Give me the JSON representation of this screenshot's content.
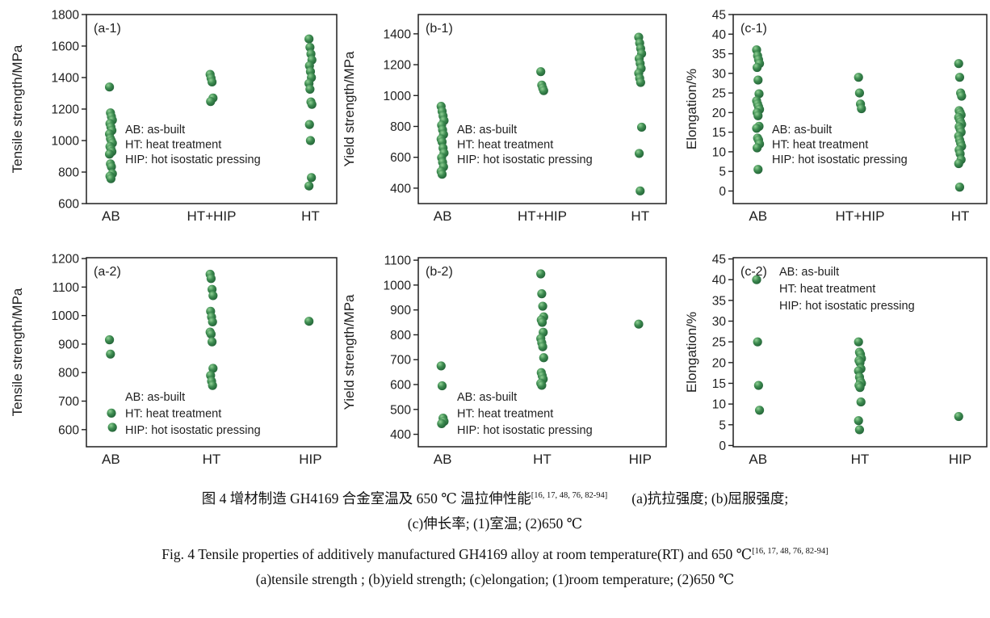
{
  "colors": {
    "point_highlight": "#90d094",
    "point_mid": "#3d8b50",
    "point_dark": "#1e5c33",
    "axis": "#1f1f1f",
    "text": "#1f1f1f"
  },
  "legend": {
    "lines": [
      "AB: as-built",
      "HT: heat treatment",
      "HIP: hot isostatic pressing"
    ]
  },
  "chart_data": [
    {
      "id": "a-1",
      "type": "scatter",
      "panel_label": "(a-1)",
      "ylabel": "Tensile strength/MPa",
      "ylim": [
        600,
        1800
      ],
      "yticks": [
        600,
        800,
        1000,
        1200,
        1400,
        1600,
        1800
      ],
      "axis_range": [
        600,
        1800
      ],
      "grid": false,
      "categories": [
        "AB",
        "HT+HIP",
        "HT"
      ],
      "legend_position": "middle-left",
      "series": [
        {
          "category": "AB",
          "values": [
            1340,
            1176,
            1152,
            1130,
            1108,
            1086,
            1064,
            1042,
            1012,
            998,
            984,
            962,
            946,
            930,
            914,
            852,
            834,
            790,
            774,
            758
          ]
        },
        {
          "category": "HT+HIP",
          "values": [
            1420,
            1396,
            1372,
            1270,
            1248
          ]
        },
        {
          "category": "HT",
          "values": [
            1645,
            1592,
            1550,
            1512,
            1475,
            1438,
            1400,
            1363,
            1326,
            1245,
            1230,
            1102,
            1000,
            765,
            712
          ]
        }
      ]
    },
    {
      "id": "b-1",
      "type": "scatter",
      "panel_label": "(b-1)",
      "ylabel": "Yield strength/MPa",
      "ylim": [
        400,
        1400
      ],
      "yticks": [
        400,
        600,
        800,
        1000,
        1200,
        1400
      ],
      "axis_range": [
        300,
        1525
      ],
      "grid": false,
      "categories": [
        "AB",
        "HT+HIP",
        "HT"
      ],
      "legend_position": "middle-left",
      "series": [
        {
          "category": "AB",
          "values": [
            930,
            898,
            868,
            838,
            808,
            778,
            748,
            718,
            700,
            660,
            628,
            598,
            568,
            538,
            508,
            490
          ]
        },
        {
          "category": "HT+HIP",
          "values": [
            1155,
            1068,
            1048,
            1032
          ]
        },
        {
          "category": "HT",
          "values": [
            1378,
            1340,
            1305,
            1272,
            1240,
            1208,
            1176,
            1145,
            1112,
            1085,
            795,
            625,
            382
          ]
        }
      ]
    },
    {
      "id": "c-1",
      "type": "scatter",
      "panel_label": "(c-1)",
      "ylabel": "Elongation/%",
      "ylim": [
        0,
        45
      ],
      "yticks": [
        0,
        5,
        10,
        15,
        20,
        25,
        30,
        35,
        40,
        45
      ],
      "axis_range": [
        -3.2,
        45
      ],
      "grid": false,
      "categories": [
        "AB",
        "HT+HIP",
        "HT"
      ],
      "legend_position": "middle-left",
      "series": [
        {
          "category": "AB",
          "values": [
            36,
            34.5,
            33.5,
            32.5,
            31.5,
            28.3,
            24.8,
            23,
            22.2,
            21.5,
            20.8,
            20,
            19.2,
            16.5,
            16,
            13.5,
            13,
            12,
            11,
            5.5
          ]
        },
        {
          "category": "HT+HIP",
          "values": [
            29,
            25,
            22.2,
            21
          ]
        },
        {
          "category": "HT",
          "values": [
            32.5,
            29,
            25,
            24.2,
            20.5,
            20,
            19.4,
            18.8,
            18.2,
            17.6,
            17,
            16.4,
            15.8,
            15,
            14,
            13,
            12.2,
            11.4,
            10.5,
            9.5,
            8,
            7,
            1
          ]
        }
      ]
    },
    {
      "id": "a-2",
      "type": "scatter",
      "panel_label": "(a-2)",
      "ylabel": "Tensile strength/MPa",
      "ylim": [
        600,
        1200
      ],
      "yticks": [
        600,
        700,
        800,
        900,
        1000,
        1100,
        1200
      ],
      "axis_range": [
        540,
        1203
      ],
      "grid": false,
      "categories": [
        "AB",
        "HT",
        "HIP"
      ],
      "legend_position": "lower-left",
      "series": [
        {
          "category": "AB",
          "values": [
            915,
            865,
            658,
            608
          ]
        },
        {
          "category": "HT",
          "values": [
            1145,
            1130,
            1092,
            1070,
            1015,
            995,
            978,
            942,
            935,
            908,
            815,
            790,
            770,
            755
          ]
        },
        {
          "category": "HIP",
          "values": [
            980
          ]
        }
      ]
    },
    {
      "id": "b-2",
      "type": "scatter",
      "panel_label": "(b-2)",
      "ylabel": "Yield strength/MPa",
      "ylim": [
        400,
        1100
      ],
      "yticks": [
        400,
        500,
        600,
        700,
        800,
        900,
        1000,
        1100
      ],
      "axis_range": [
        350,
        1110
      ],
      "grid": false,
      "categories": [
        "AB",
        "HT",
        "HIP"
      ],
      "legend_position": "lower-left",
      "series": [
        {
          "category": "AB",
          "values": [
            675,
            595,
            465,
            452,
            443
          ]
        },
        {
          "category": "HT",
          "values": [
            1045,
            965,
            915,
            872,
            860,
            850,
            810,
            785,
            768,
            752,
            708,
            648,
            635,
            622,
            605,
            597
          ]
        },
        {
          "category": "HIP",
          "values": [
            843
          ]
        }
      ]
    },
    {
      "id": "c-2",
      "type": "scatter",
      "panel_label": "(c-2)",
      "ylabel": "Elongation/%",
      "ylim": [
        0,
        45
      ],
      "yticks": [
        0,
        5,
        10,
        15,
        20,
        25,
        30,
        35,
        40,
        45
      ],
      "axis_range": [
        -0.3,
        45.3
      ],
      "grid": false,
      "categories": [
        "AB",
        "HT",
        "HIP"
      ],
      "legend_position": "upper-right",
      "series": [
        {
          "category": "AB",
          "values": [
            40,
            25,
            14.5,
            8.5
          ]
        },
        {
          "category": "HT",
          "values": [
            25,
            22.5,
            22,
            21,
            20.5,
            20,
            18.5,
            18,
            16.5,
            15.5,
            15,
            14.5,
            14,
            10.5,
            6,
            3.8
          ]
        },
        {
          "category": "HIP",
          "values": [
            7
          ]
        }
      ]
    }
  ],
  "caption": {
    "zh_line1": "图 4  增材制造 GH4169 合金室温及 650 ℃ 温拉伸性能",
    "ref": "[16, 17, 48, 76, 82-94]",
    "zh_line1_tail": "(a)抗拉强度; (b)屈服强度;",
    "zh_line2": "(c)伸长率; (1)室温; (2)650 ℃",
    "en_line1": "Fig. 4   Tensile properties of additively manufactured GH4169 alloy at room temperature(RT) and 650 ℃",
    "en_line2": "(a)tensile strength ; (b)yield strength; (c)elongation; (1)room temperature; (2)650 ℃"
  }
}
